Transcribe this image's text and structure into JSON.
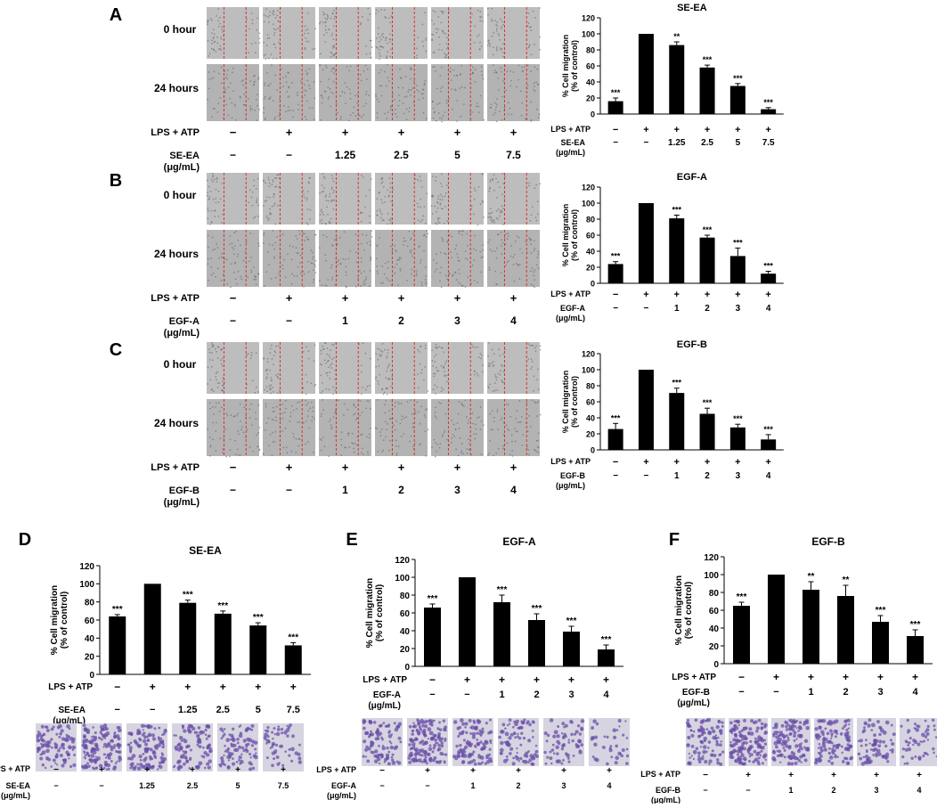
{
  "colors": {
    "bar": "#000000",
    "axis": "#000000",
    "wound_bg_0h": "#bdbdbd",
    "wound_bg_24h": "#b3b3b3",
    "wound_speckle": "#5a5a5a",
    "wound_line": "#e0322a",
    "transwell_bg": "#d6d4e0",
    "transwell_cell": "#6a4fa8"
  },
  "panel_letters": [
    "A",
    "B",
    "C",
    "D",
    "E",
    "F"
  ],
  "row_labels": {
    "hour0": "0 hour",
    "hour24": "24 hours"
  },
  "treatment_label": "LPS + ATP",
  "unit_label": "(μg/mL)",
  "y_axis_label_line1": "% Cell migration",
  "y_axis_label_line2": "(% of control)",
  "chart_data": [
    {
      "id": "A",
      "type": "bar",
      "title": "SE-EA",
      "compound": "SE-EA",
      "lps_atp": [
        "−",
        "+",
        "+",
        "+",
        "+",
        "+"
      ],
      "doses": [
        "−",
        "−",
        "1.25",
        "2.5",
        "5",
        "7.5"
      ],
      "values": [
        16,
        100,
        86,
        58,
        35,
        6
      ],
      "errors": [
        4,
        0,
        4,
        3,
        3,
        2
      ],
      "significance": [
        "***",
        "",
        "**",
        "***",
        "***",
        "***"
      ],
      "ylim": [
        0,
        120
      ],
      "yticks": [
        "0",
        "20",
        "40",
        "60",
        "80",
        "100",
        "120"
      ]
    },
    {
      "id": "B",
      "type": "bar",
      "title": "EGF-A",
      "compound": "EGF-A",
      "lps_atp": [
        "−",
        "+",
        "+",
        "+",
        "+",
        "+"
      ],
      "doses": [
        "−",
        "−",
        "1",
        "2",
        "3",
        "4"
      ],
      "values": [
        24,
        100,
        81,
        57,
        34,
        12
      ],
      "errors": [
        3,
        0,
        4,
        3,
        10,
        3
      ],
      "significance": [
        "***",
        "",
        "***",
        "***",
        "***",
        "***"
      ],
      "ylim": [
        0,
        120
      ],
      "yticks": [
        "0",
        "20",
        "40",
        "60",
        "80",
        "100",
        "120"
      ]
    },
    {
      "id": "C",
      "type": "bar",
      "title": "EGF-B",
      "compound": "EGF-B",
      "lps_atp": [
        "−",
        "+",
        "+",
        "+",
        "+",
        "+"
      ],
      "doses": [
        "−",
        "−",
        "1",
        "2",
        "3",
        "4"
      ],
      "values": [
        26,
        100,
        71,
        45,
        28,
        13
      ],
      "errors": [
        7,
        0,
        6,
        7,
        4,
        6
      ],
      "significance": [
        "***",
        "",
        "***",
        "***",
        "***",
        "***"
      ],
      "ylim": [
        0,
        120
      ],
      "yticks": [
        "0",
        "20",
        "40",
        "60",
        "80",
        "100",
        "120"
      ]
    },
    {
      "id": "D",
      "type": "bar",
      "title": "SE-EA",
      "compound": "SE-EA",
      "lps_atp": [
        "−",
        "+",
        "+",
        "+",
        "+",
        "+"
      ],
      "doses": [
        "−",
        "−",
        "1.25",
        "2.5",
        "5",
        "7.5"
      ],
      "values": [
        64,
        100,
        79,
        67,
        54,
        32
      ],
      "errors": [
        2,
        0,
        3,
        3,
        3,
        3
      ],
      "significance": [
        "***",
        "",
        "***",
        "***",
        "***",
        "***"
      ],
      "ylim": [
        0,
        120
      ],
      "yticks": [
        "0",
        "20",
        "40",
        "60",
        "80",
        "100",
        "120"
      ]
    },
    {
      "id": "E",
      "type": "bar",
      "title": "EGF-A",
      "compound": "EGF-A",
      "lps_atp": [
        "−",
        "+",
        "+",
        "+",
        "+",
        "+"
      ],
      "doses": [
        "−",
        "−",
        "1",
        "2",
        "3",
        "4"
      ],
      "values": [
        66,
        100,
        72,
        52,
        39,
        19
      ],
      "errors": [
        4,
        0,
        8,
        7,
        6,
        5
      ],
      "significance": [
        "***",
        "",
        "***",
        "***",
        "***",
        "***"
      ],
      "ylim": [
        0,
        120
      ],
      "yticks": [
        "0",
        "20",
        "40",
        "60",
        "80",
        "100",
        "120"
      ]
    },
    {
      "id": "F",
      "type": "bar",
      "title": "EGF-B",
      "compound": "EGF-B",
      "lps_atp": [
        "−",
        "+",
        "+",
        "+",
        "+",
        "+"
      ],
      "doses": [
        "−",
        "−",
        "1",
        "2",
        "3",
        "4"
      ],
      "values": [
        65,
        100,
        83,
        76,
        47,
        31
      ],
      "errors": [
        4,
        0,
        9,
        12,
        7,
        7
      ],
      "significance": [
        "***",
        "",
        "**",
        "**",
        "***",
        "***"
      ],
      "ylim": [
        0,
        120
      ],
      "yticks": [
        "0",
        "20",
        "40",
        "60",
        "80",
        "100",
        "120"
      ]
    }
  ]
}
